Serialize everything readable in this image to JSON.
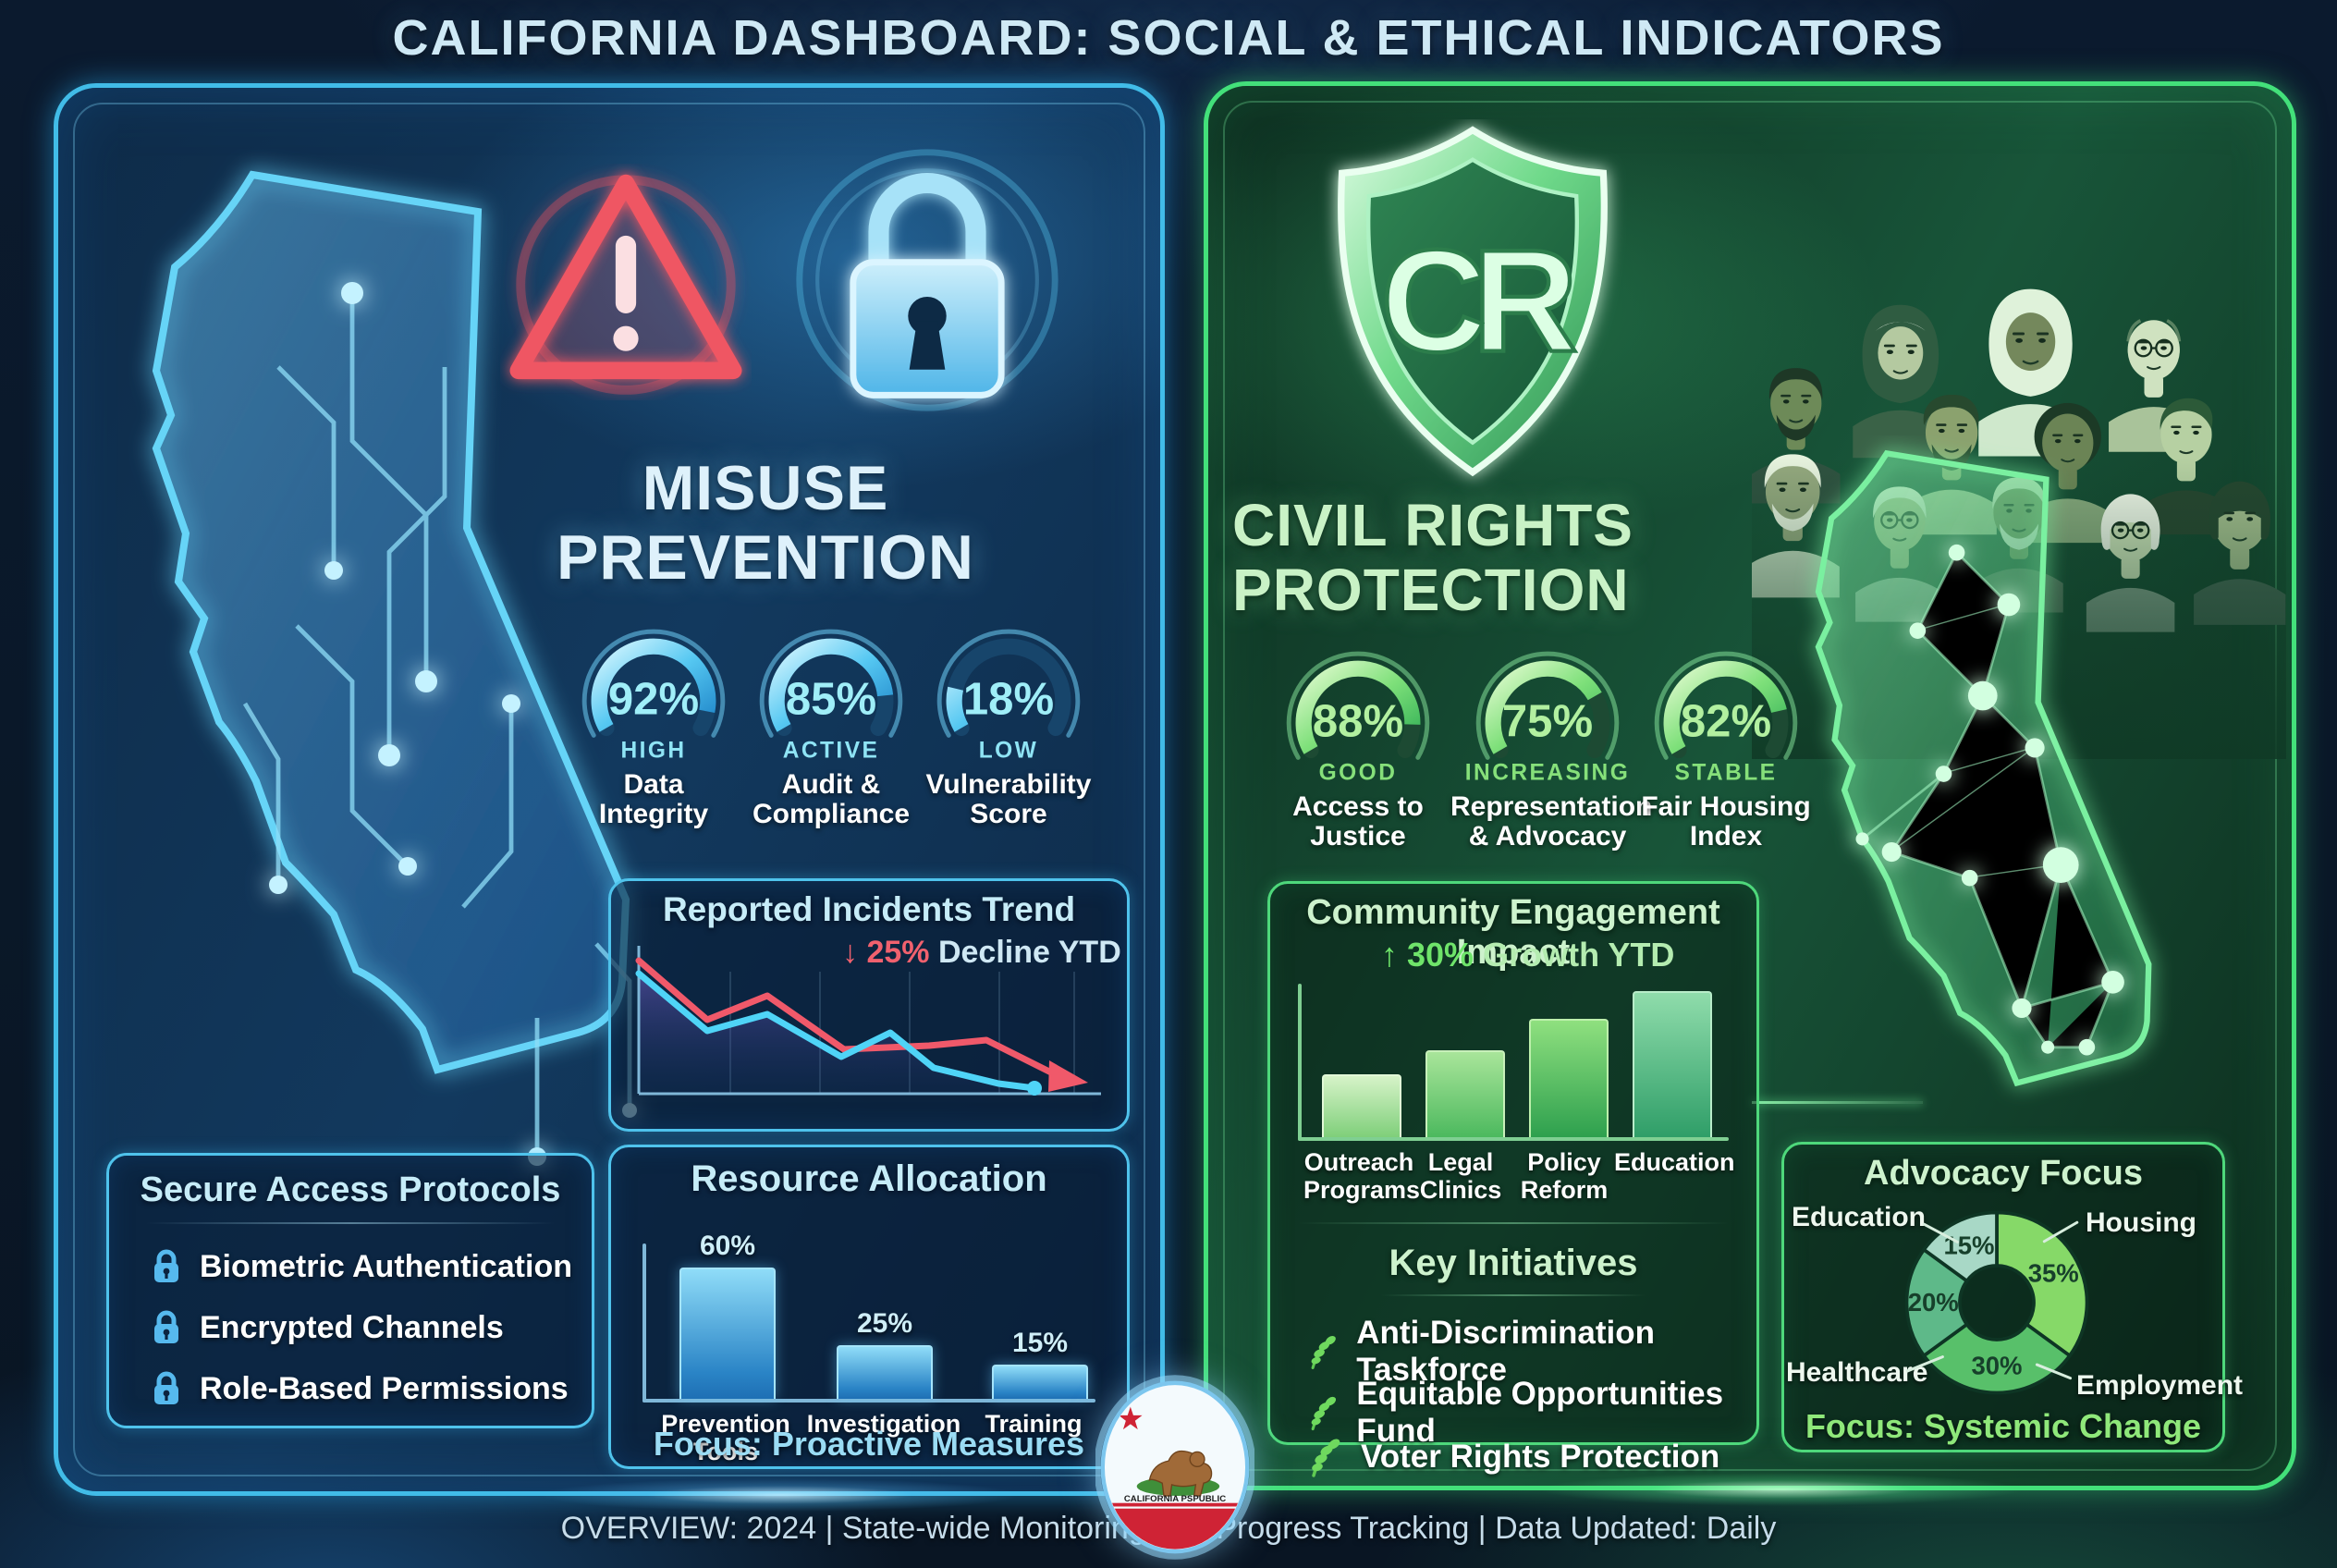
{
  "page": {
    "title": "CALIFORNIA DASHBOARD: SOCIAL & ETHICAL INDICATORS",
    "footer": "OVERVIEW: 2024 | State-wide Monitoring and Progress Tracking | Data Updated: Daily",
    "seal_text": "CALIFORNIA PSPUBLIC"
  },
  "colors": {
    "accent_blue": "#41bce8",
    "accent_green": "#43e07a",
    "alert_red": "#ef5a67"
  },
  "left": {
    "heading1": "MISUSE",
    "heading2": "PREVENTION",
    "gauges": [
      {
        "value": "92%",
        "status": "HIGH",
        "label1": "Data",
        "label2": "Integrity"
      },
      {
        "value": "85%",
        "status": "ACTIVE",
        "label1": "Audit &",
        "label2": "Compliance"
      },
      {
        "value": "18%",
        "status": "LOW",
        "label1": "Vulnerability",
        "label2": "Score"
      }
    ],
    "incidents": {
      "title": "Reported Incidents Trend",
      "arrow": "↓",
      "pct": "25%",
      "text": "Decline YTD"
    },
    "protocols": {
      "title": "Secure Access Protocols",
      "items": [
        "Biometric Authentication",
        "Encrypted Channels",
        "Role-Based Permissions"
      ]
    },
    "resources": {
      "title": "Resource Allocation",
      "bars": [
        {
          "pct": "60%",
          "label1": "Prevention",
          "label2": "Tools"
        },
        {
          "pct": "25%",
          "label1": "Investigation",
          "label2": ""
        },
        {
          "pct": "15%",
          "label1": "Training",
          "label2": ""
        }
      ],
      "focus": "Focus: Proactive Measures"
    }
  },
  "right": {
    "shield_monogram": "CR",
    "heading1": "CIVIL RIGHTS",
    "heading2": "PROTECTION",
    "gauges": [
      {
        "value": "88%",
        "status": "GOOD",
        "label1": "Access to",
        "label2": "Justice"
      },
      {
        "value": "75%",
        "status": "INCREASING",
        "label1": "Representation",
        "label2": "& Advocacy"
      },
      {
        "value": "82%",
        "status": "STABLE",
        "label1": "Fair Housing",
        "label2": "Index"
      }
    ],
    "community": {
      "title": "Community Engagement Impact",
      "arrow": "↑",
      "pct": "30%",
      "text": "Growth YTD",
      "bars": [
        {
          "label1": "Outreach",
          "label2": "Programs"
        },
        {
          "label1": "Legal",
          "label2": "Clinics"
        },
        {
          "label1": "Policy",
          "label2": "Reform"
        },
        {
          "label1": "Education",
          "label2": ""
        }
      ]
    },
    "initiatives": {
      "title": "Key Initiatives",
      "items": [
        "Anti-Discrimination Taskforce",
        "Equitable Opportunities Fund",
        "Voter Rights Protection"
      ]
    },
    "advocacy": {
      "title": "Advocacy Focus",
      "slices": [
        {
          "label": "Housing",
          "pct": "35%"
        },
        {
          "label": "Employment",
          "pct": "30%"
        },
        {
          "label": "Healthcare",
          "pct": "20%"
        },
        {
          "label": "Education",
          "pct": "15%"
        }
      ],
      "focus": "Focus: Systemic Change"
    }
  },
  "chart_data": [
    {
      "type": "gauge",
      "title": "Misuse Prevention Gauges",
      "unit": "%",
      "items": [
        {
          "label": "Data Integrity",
          "value": 92,
          "status": "HIGH"
        },
        {
          "label": "Audit & Compliance",
          "value": 85,
          "status": "ACTIVE"
        },
        {
          "label": "Vulnerability Score",
          "value": 18,
          "status": "LOW"
        }
      ]
    },
    {
      "type": "line",
      "title": "Reported Incidents Trend",
      "annotation": "↓ 25% Decline YTD",
      "x": [
        1,
        2,
        3,
        4,
        5,
        6,
        7
      ],
      "series": [
        {
          "name": "incidents-red",
          "values": [
            95,
            58,
            73,
            40,
            38,
            36,
            14
          ]
        },
        {
          "name": "incidents-cyan",
          "values": [
            88,
            52,
            63,
            33,
            48,
            20,
            8
          ]
        }
      ],
      "layout": {
        "axes_labeled": false,
        "area_fill": true,
        "arrow_end": true,
        "grid": "vertical"
      }
    },
    {
      "type": "bar",
      "title": "Resource Allocation",
      "unit": "%",
      "categories": [
        "Prevention Tools",
        "Investigation",
        "Training"
      ],
      "values": [
        60,
        25,
        15
      ],
      "note": "Focus: Proactive Measures",
      "ylim": [
        0,
        75
      ]
    },
    {
      "type": "gauge",
      "title": "Civil Rights Protection Gauges",
      "unit": "%",
      "items": [
        {
          "label": "Access to Justice",
          "value": 88,
          "status": "GOOD"
        },
        {
          "label": "Representation & Advocacy",
          "value": 75,
          "status": "INCREASING"
        },
        {
          "label": "Fair Housing Index",
          "value": 82,
          "status": "STABLE"
        }
      ]
    },
    {
      "type": "bar",
      "title": "Community Engagement Impact",
      "annotation": "↑ 30% Growth YTD",
      "categories": [
        "Outreach Programs",
        "Legal Clinics",
        "Policy Reform",
        "Education"
      ],
      "values": [
        40,
        55,
        75,
        95
      ],
      "layout": {
        "y_axis_unlabeled": true
      }
    },
    {
      "type": "pie",
      "title": "Advocacy Focus",
      "donut": true,
      "categories": [
        "Housing",
        "Employment",
        "Healthcare",
        "Education"
      ],
      "values": [
        35,
        30,
        20,
        15
      ],
      "note": "Focus: Systemic Change",
      "legend_position": "callouts"
    }
  ]
}
